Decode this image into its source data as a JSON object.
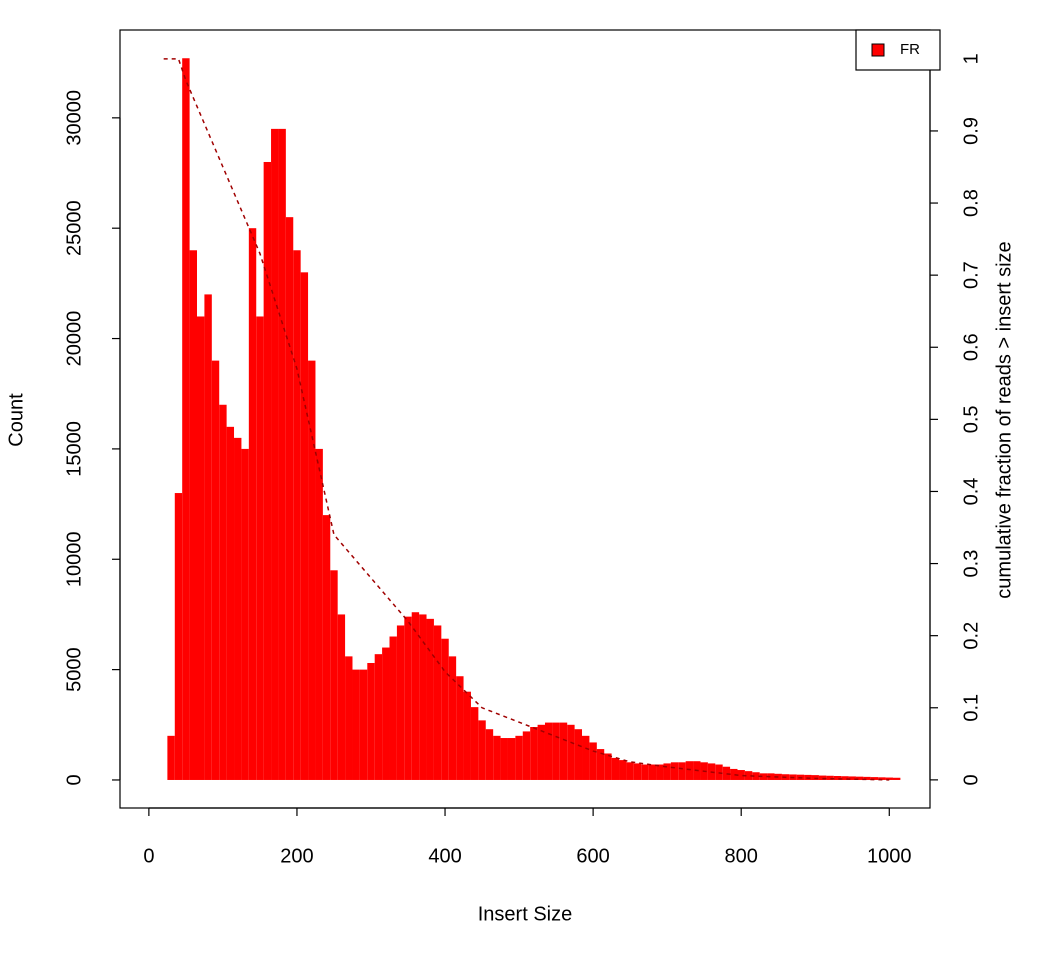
{
  "chart_data": {
    "type": "bar",
    "xlabel": "Insert Size",
    "ylabel": "Count",
    "y2label": "cumulative fraction of reads > insert size",
    "x": [
      20,
      30,
      40,
      50,
      60,
      70,
      80,
      90,
      100,
      110,
      120,
      130,
      140,
      150,
      160,
      170,
      180,
      190,
      200,
      210,
      220,
      230,
      240,
      250,
      260,
      270,
      280,
      290,
      300,
      310,
      320,
      330,
      340,
      350,
      360,
      370,
      380,
      390,
      400,
      410,
      420,
      430,
      440,
      450,
      460,
      470,
      480,
      490,
      500,
      510,
      520,
      530,
      540,
      550,
      560,
      570,
      580,
      590,
      600,
      610,
      620,
      630,
      640,
      650,
      660,
      670,
      680,
      690,
      700,
      710,
      720,
      730,
      740,
      750,
      760,
      770,
      780,
      790,
      800,
      810,
      820,
      830,
      840,
      850,
      860,
      870,
      880,
      890,
      900,
      910,
      920,
      930,
      940,
      950,
      960,
      970,
      980,
      990,
      1000,
      1010
    ],
    "series": [
      {
        "name": "FR",
        "color": "#ff0000",
        "values": [
          0,
          2000,
          13000,
          32700,
          24000,
          21000,
          22000,
          19000,
          17000,
          16000,
          15500,
          15000,
          25000,
          21000,
          28000,
          29500,
          29500,
          25500,
          24000,
          23000,
          19000,
          15000,
          12000,
          9500,
          7500,
          5600,
          5000,
          5000,
          5300,
          5700,
          6000,
          6500,
          7000,
          7400,
          7600,
          7500,
          7300,
          7000,
          6400,
          5600,
          4700,
          4000,
          3300,
          2700,
          2300,
          2000,
          1900,
          1900,
          2000,
          2200,
          2400,
          2500,
          2600,
          2600,
          2600,
          2500,
          2300,
          2000,
          1700,
          1400,
          1200,
          1000,
          900,
          800,
          750,
          700,
          700,
          700,
          750,
          800,
          800,
          850,
          850,
          800,
          750,
          700,
          600,
          500,
          450,
          400,
          350,
          300,
          300,
          280,
          260,
          250,
          240,
          230,
          220,
          200,
          190,
          180,
          170,
          160,
          150,
          140,
          130,
          120,
          110,
          100
        ]
      },
      {
        "type": "line",
        "axis": "y2",
        "color": "#a00000",
        "dashed": true,
        "x": [
          20,
          40,
          50,
          100,
          150,
          200,
          250,
          300,
          350,
          400,
          450,
          500,
          550,
          600,
          650,
          700,
          750,
          800,
          850,
          900,
          1000
        ],
        "values": [
          1,
          1,
          0.97,
          0.85,
          0.73,
          0.57,
          0.34,
          0.28,
          0.22,
          0.15,
          0.1,
          0.08,
          0.06,
          0.04,
          0.025,
          0.018,
          0.012,
          0.006,
          0.004,
          0.002,
          0
        ]
      }
    ],
    "xlim": [
      -39,
      1055
    ],
    "xticks": [
      0,
      200,
      400,
      600,
      800,
      1000
    ],
    "ylim": [
      -1270,
      33980
    ],
    "yticks": [
      0,
      5000,
      10000,
      15000,
      20000,
      25000,
      30000
    ],
    "y2lim": [
      -0.039,
      1.04
    ],
    "y2ticks": [
      0,
      0.1,
      0.2,
      0.3,
      0.4,
      0.5,
      0.6,
      0.7,
      0.8,
      0.9,
      1
    ],
    "legend": "top-right"
  }
}
